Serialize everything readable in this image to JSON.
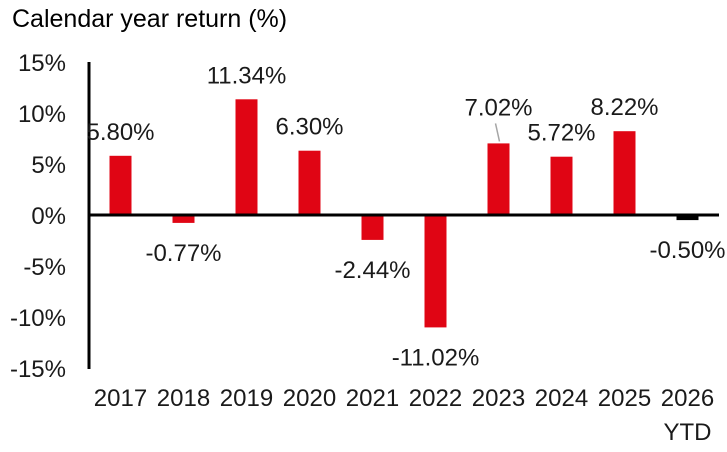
{
  "chart_data": {
    "type": "bar",
    "title": "Calendar year return (%)",
    "categories": [
      "2017",
      "2018",
      "2019",
      "2020",
      "2021",
      "2022",
      "2023",
      "2024",
      "2025",
      "2026"
    ],
    "category_sublabels": [
      "",
      "",
      "",
      "",
      "",
      "",
      "",
      "",
      "",
      "YTD"
    ],
    "values": [
      5.8,
      -0.77,
      11.34,
      6.3,
      -2.44,
      -11.02,
      7.02,
      5.72,
      8.22,
      -0.5
    ],
    "data_labels": [
      "5.80%",
      "-0.77%",
      "11.34%",
      "6.30%",
      "-2.44%",
      "-11.02%",
      "7.02%",
      "5.72%",
      "8.22%",
      "-0.50%"
    ],
    "bar_colors": [
      "#e00514",
      "#e00514",
      "#e00514",
      "#e00514",
      "#e00514",
      "#e00514",
      "#e00514",
      "#e00514",
      "#e00514",
      "#000000"
    ],
    "callout_indices": [
      6
    ],
    "ylim": [
      -15,
      15
    ],
    "ytick_values": [
      15,
      10,
      5,
      0,
      -5,
      -10,
      -15
    ],
    "ytick_labels": [
      "15%",
      "10%",
      "5%",
      "0%",
      "-5%",
      "-10%",
      "-15%"
    ],
    "xlabel": "",
    "ylabel": "",
    "grid": false,
    "legend": false,
    "colors": {
      "bar_red": "#e00514",
      "bar_black": "#000000",
      "axis": "#000000",
      "text": "#1a1a1a",
      "leader_line": "#a6a6a6",
      "background": "#ffffff"
    }
  }
}
